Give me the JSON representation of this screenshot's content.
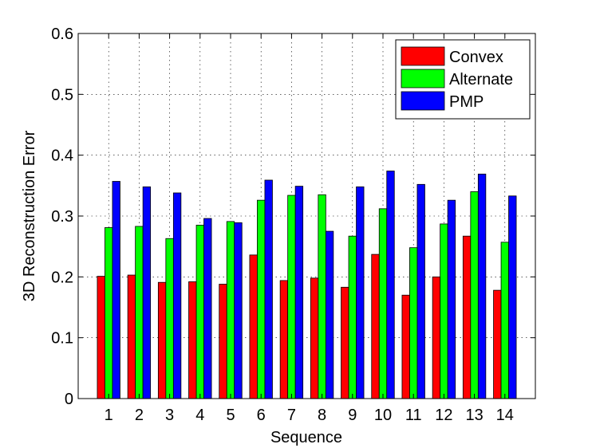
{
  "chart_data": {
    "type": "bar",
    "title": "",
    "xlabel": "Sequence",
    "ylabel": "3D Reconstruction Error",
    "categories": [
      "1",
      "2",
      "3",
      "4",
      "5",
      "6",
      "7",
      "8",
      "9",
      "10",
      "11",
      "12",
      "13",
      "14"
    ],
    "ylim": [
      0,
      0.6
    ],
    "yticks": [
      "0",
      "0.1",
      "0.2",
      "0.3",
      "0.4",
      "0.5",
      "0.6"
    ],
    "grid": true,
    "legend_position": "top-right",
    "series": [
      {
        "name": "Convex",
        "color": "#ff0000",
        "values": [
          0.201,
          0.203,
          0.191,
          0.192,
          0.188,
          0.236,
          0.194,
          0.198,
          0.183,
          0.237,
          0.17,
          0.2,
          0.267,
          0.178
        ]
      },
      {
        "name": "Alternate",
        "color": "#00ff00",
        "values": [
          0.281,
          0.283,
          0.263,
          0.285,
          0.291,
          0.326,
          0.334,
          0.335,
          0.267,
          0.312,
          0.248,
          0.287,
          0.34,
          0.257
        ]
      },
      {
        "name": "PMP",
        "color": "#0000ff",
        "values": [
          0.357,
          0.348,
          0.338,
          0.296,
          0.289,
          0.359,
          0.349,
          0.275,
          0.348,
          0.374,
          0.352,
          0.326,
          0.369,
          0.333
        ]
      }
    ]
  }
}
